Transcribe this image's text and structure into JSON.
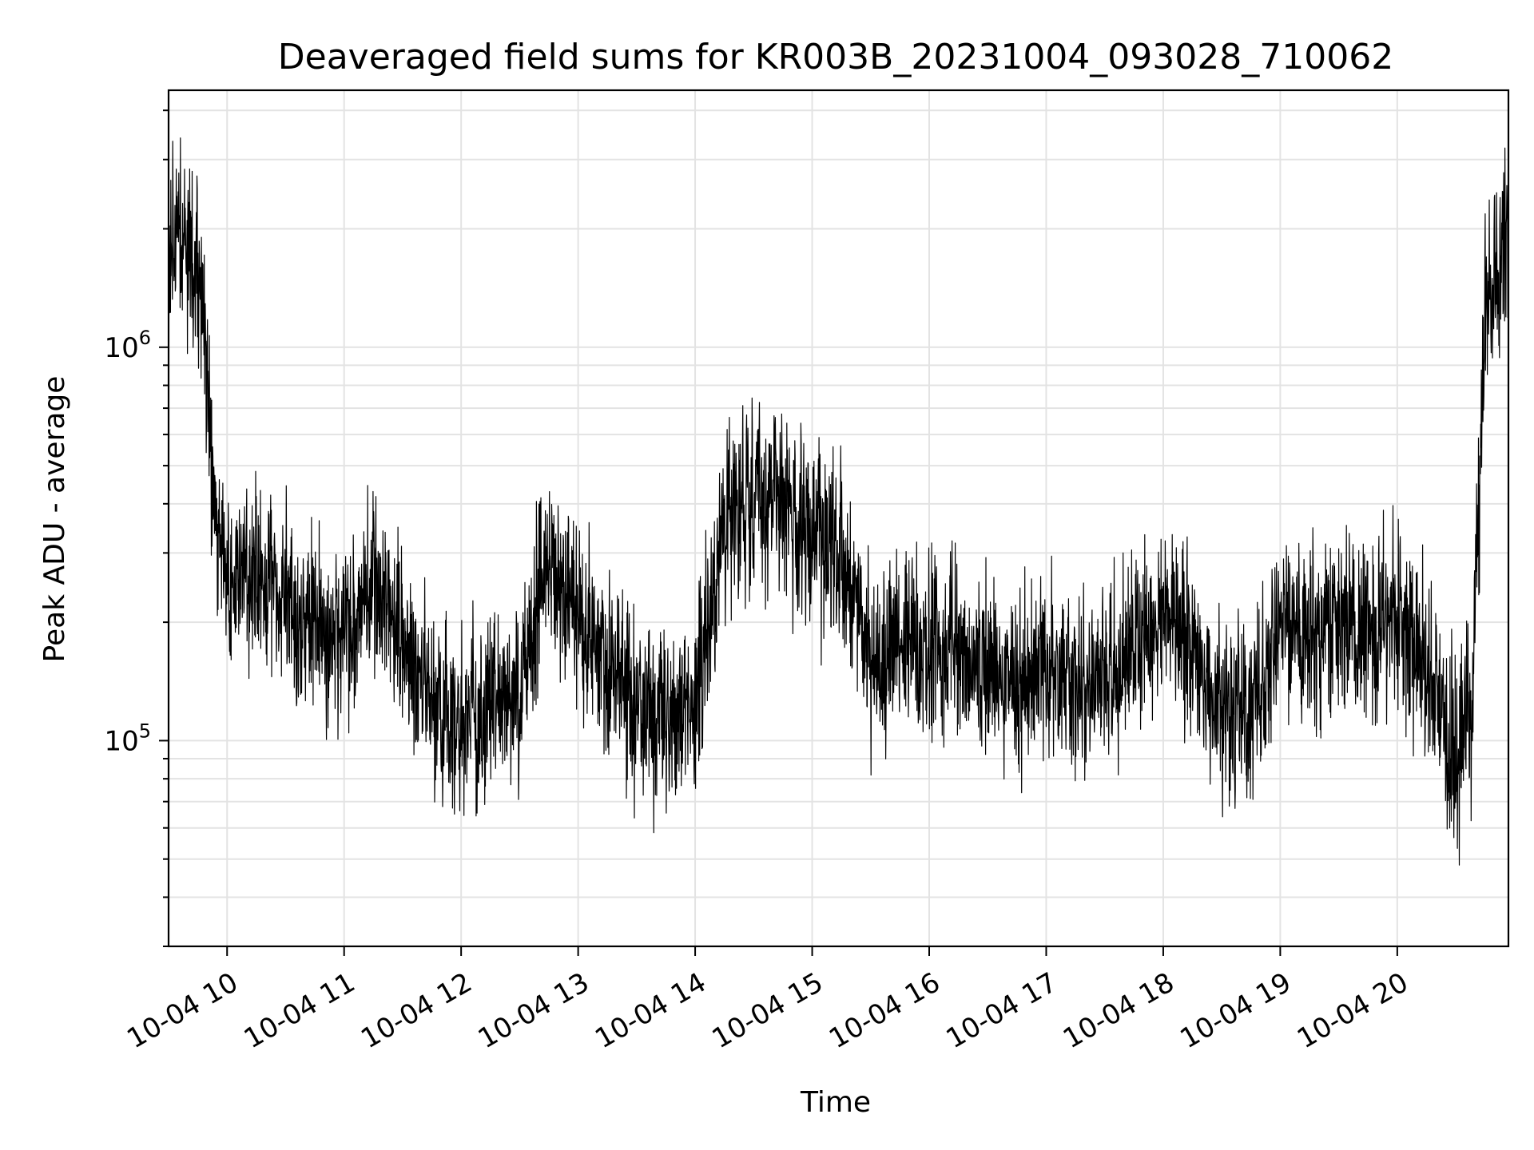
{
  "chart_data": {
    "type": "line",
    "title": "Deaveraged field sums for KR003B_20231004_093028_710062",
    "xlabel": "Time",
    "ylabel": "Peak ADU - average",
    "x_tick_labels": [
      "10-04 10",
      "10-04 11",
      "10-04 12",
      "10-04 13",
      "10-04 14",
      "10-04 15",
      "10-04 16",
      "10-04 17",
      "10-04 18",
      "10-04 19",
      "10-04 20"
    ],
    "y_tick_labels": [
      {
        "base": "10",
        "exp": "5",
        "value": 100000
      },
      {
        "base": "10",
        "exp": "6",
        "value": 1000000
      }
    ],
    "y_scale": "log",
    "xlim": [
      "2023-10-04 09:30",
      "2023-10-04 20:57"
    ],
    "ylim": [
      30000,
      4500000
    ],
    "grid": true,
    "color": "#000000",
    "series": [
      {
        "x": [
          "2023-10-04 09:30",
          "2023-10-04 09:36",
          "2023-10-04 09:42",
          "2023-10-04 09:48",
          "2023-10-04 09:54",
          "2023-10-04 10:00",
          "2023-10-04 10:15",
          "2023-10-04 10:30",
          "2023-10-04 10:45",
          "2023-10-04 11:00",
          "2023-10-04 11:15",
          "2023-10-04 11:30",
          "2023-10-04 11:45",
          "2023-10-04 12:00",
          "2023-10-04 12:15",
          "2023-10-04 12:30",
          "2023-10-04 12:45",
          "2023-10-04 13:00",
          "2023-10-04 13:15",
          "2023-10-04 13:30",
          "2023-10-04 13:45",
          "2023-10-04 14:00",
          "2023-10-04 14:15",
          "2023-10-04 14:30",
          "2023-10-04 14:45",
          "2023-10-04 15:00",
          "2023-10-04 15:15",
          "2023-10-04 15:30",
          "2023-10-04 15:45",
          "2023-10-04 16:00",
          "2023-10-04 16:15",
          "2023-10-04 16:30",
          "2023-10-04 16:45",
          "2023-10-04 17:00",
          "2023-10-04 17:15",
          "2023-10-04 17:30",
          "2023-10-04 17:45",
          "2023-10-04 18:00",
          "2023-10-04 18:15",
          "2023-10-04 18:30",
          "2023-10-04 18:45",
          "2023-10-04 19:00",
          "2023-10-04 19:15",
          "2023-10-04 19:30",
          "2023-10-04 19:45",
          "2023-10-04 20:00",
          "2023-10-04 20:15",
          "2023-10-04 20:30",
          "2023-10-04 20:38",
          "2023-10-04 20:45",
          "2023-10-04 20:51",
          "2023-10-04 20:57"
        ],
        "y": [
          1600000,
          1800000,
          1700000,
          1200000,
          350000,
          280000,
          260000,
          230000,
          200000,
          180000,
          260000,
          180000,
          120000,
          110000,
          130000,
          140000,
          280000,
          200000,
          150000,
          120000,
          110000,
          130000,
          350000,
          420000,
          400000,
          350000,
          280000,
          160000,
          180000,
          160000,
          170000,
          150000,
          140000,
          150000,
          140000,
          150000,
          170000,
          200000,
          180000,
          120000,
          120000,
          200000,
          190000,
          190000,
          200000,
          200000,
          150000,
          90000,
          120000,
          1200000,
          1500000,
          2000000
        ],
        "spread_factor": 2.2
      }
    ]
  }
}
